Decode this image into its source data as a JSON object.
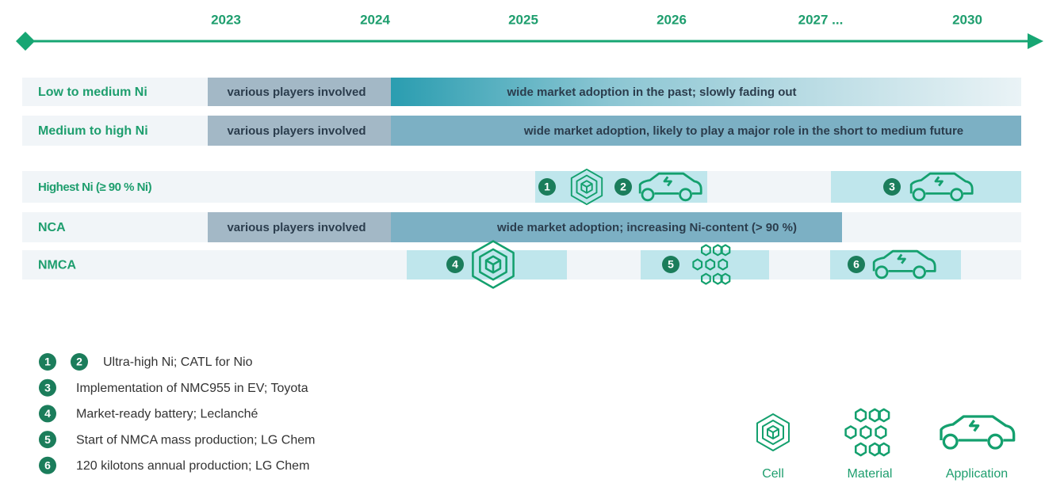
{
  "timeline": {
    "years": [
      "2023",
      "2024",
      "2025",
      "2026",
      "2027 ...",
      "2030"
    ]
  },
  "rows": [
    {
      "label": "Low to medium Ni",
      "bars": [
        "various players involved",
        "wide market adoption in the past; slowly fading out"
      ]
    },
    {
      "label": "Medium to high Ni",
      "bars": [
        "various players involved",
        "wide market adoption, likely to play a major role in the short to medium future"
      ]
    },
    {
      "label": "Highest Ni (≥ 90 % Ni)",
      "milestones": [
        "1",
        "2",
        "3"
      ]
    },
    {
      "label": "NCA",
      "bars": [
        "various players involved",
        "wide market adoption; increasing Ni-content (> 90 %)"
      ]
    },
    {
      "label": "NMCA",
      "milestones": [
        "4",
        "5",
        "6"
      ]
    }
  ],
  "notes": [
    {
      "markers": [
        "1",
        "2"
      ],
      "text": "Ultra-high Ni; CATL for Nio"
    },
    {
      "markers": [
        "3"
      ],
      "text": "Implementation of NMC955 in EV; Toyota"
    },
    {
      "markers": [
        "4"
      ],
      "text": "Market-ready battery; Leclanché"
    },
    {
      "markers": [
        "5"
      ],
      "text": "Start of NMCA mass production; LG Chem"
    },
    {
      "markers": [
        "6"
      ],
      "text": "120 kilotons annual production; LG Chem"
    }
  ],
  "icon_legend": [
    "Cell",
    "Material",
    "Application"
  ]
}
